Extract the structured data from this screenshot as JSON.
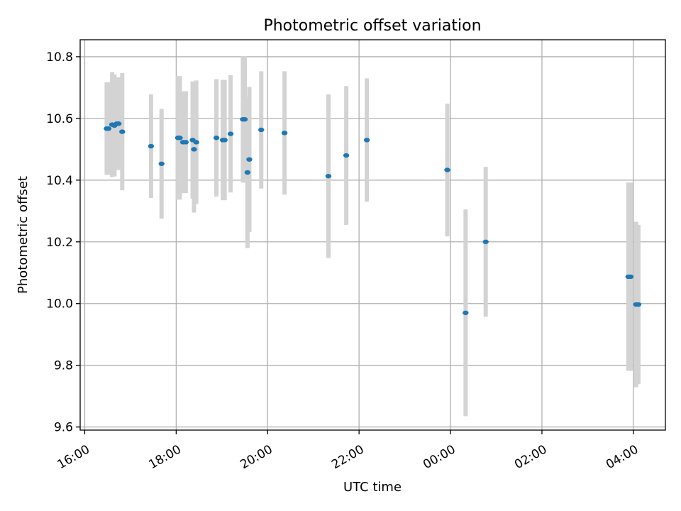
{
  "chart_data": {
    "type": "scatter",
    "title": "Photometric offset variation",
    "xlabel": "UTC time",
    "ylabel": "Photometric offset",
    "x_unit": "hours",
    "xlim": [
      15.9,
      28.7
    ],
    "ylim": [
      9.59,
      10.855
    ],
    "x_ticks": [
      {
        "value": 16,
        "label": "16:00"
      },
      {
        "value": 18,
        "label": "18:00"
      },
      {
        "value": 20,
        "label": "20:00"
      },
      {
        "value": 22,
        "label": "22:00"
      },
      {
        "value": 24,
        "label": "00:00"
      },
      {
        "value": 26,
        "label": "02:00"
      },
      {
        "value": 28,
        "label": "04:00"
      }
    ],
    "y_ticks": [
      {
        "value": 9.6,
        "label": "9.6"
      },
      {
        "value": 9.8,
        "label": "9.8"
      },
      {
        "value": 10.0,
        "label": "10.0"
      },
      {
        "value": 10.2,
        "label": "10.2"
      },
      {
        "value": 10.4,
        "label": "10.4"
      },
      {
        "value": 10.6,
        "label": "10.6"
      },
      {
        "value": 10.8,
        "label": "10.8"
      }
    ],
    "grid": true,
    "point_color": "#1f77b4",
    "errorbar_color": "#d3d3d3",
    "points": [
      {
        "x": 16.48,
        "y": 10.567,
        "err": 0.15
      },
      {
        "x": 16.52,
        "y": 10.567,
        "err": 0.15
      },
      {
        "x": 16.6,
        "y": 10.58,
        "err": 0.17
      },
      {
        "x": 16.65,
        "y": 10.577,
        "err": 0.165
      },
      {
        "x": 16.7,
        "y": 10.583,
        "err": 0.15
      },
      {
        "x": 16.74,
        "y": 10.583,
        "err": 0.15
      },
      {
        "x": 16.82,
        "y": 10.557,
        "err": 0.19
      },
      {
        "x": 17.45,
        "y": 10.51,
        "err": 0.168
      },
      {
        "x": 17.68,
        "y": 10.453,
        "err": 0.178
      },
      {
        "x": 18.04,
        "y": 10.537,
        "err": 0.2
      },
      {
        "x": 18.08,
        "y": 10.537,
        "err": 0.2
      },
      {
        "x": 18.15,
        "y": 10.523,
        "err": 0.165
      },
      {
        "x": 18.21,
        "y": 10.523,
        "err": 0.165
      },
      {
        "x": 18.36,
        "y": 10.53,
        "err": 0.19
      },
      {
        "x": 18.39,
        "y": 10.5,
        "err": 0.205
      },
      {
        "x": 18.44,
        "y": 10.523,
        "err": 0.2
      },
      {
        "x": 18.88,
        "y": 10.537,
        "err": 0.19
      },
      {
        "x": 19.02,
        "y": 10.53,
        "err": 0.195
      },
      {
        "x": 19.06,
        "y": 10.53,
        "err": 0.195
      },
      {
        "x": 19.19,
        "y": 10.55,
        "err": 0.19
      },
      {
        "x": 19.46,
        "y": 10.597,
        "err": 0.205
      },
      {
        "x": 19.5,
        "y": 10.597,
        "err": 0.205
      },
      {
        "x": 19.56,
        "y": 10.425,
        "err": 0.245
      },
      {
        "x": 19.6,
        "y": 10.467,
        "err": 0.235
      },
      {
        "x": 19.86,
        "y": 10.563,
        "err": 0.19
      },
      {
        "x": 20.37,
        "y": 10.553,
        "err": 0.2
      },
      {
        "x": 21.33,
        "y": 10.413,
        "err": 0.265
      },
      {
        "x": 21.72,
        "y": 10.48,
        "err": 0.225
      },
      {
        "x": 22.17,
        "y": 10.53,
        "err": 0.2
      },
      {
        "x": 23.93,
        "y": 10.433,
        "err": 0.215
      },
      {
        "x": 24.33,
        "y": 9.97,
        "err": 0.335
      },
      {
        "x": 24.77,
        "y": 10.2,
        "err": 0.243
      },
      {
        "x": 27.89,
        "y": 10.087,
        "err": 0.305
      },
      {
        "x": 27.94,
        "y": 10.087,
        "err": 0.305
      },
      {
        "x": 28.06,
        "y": 9.997,
        "err": 0.268
      },
      {
        "x": 28.11,
        "y": 9.997,
        "err": 0.258
      }
    ]
  }
}
